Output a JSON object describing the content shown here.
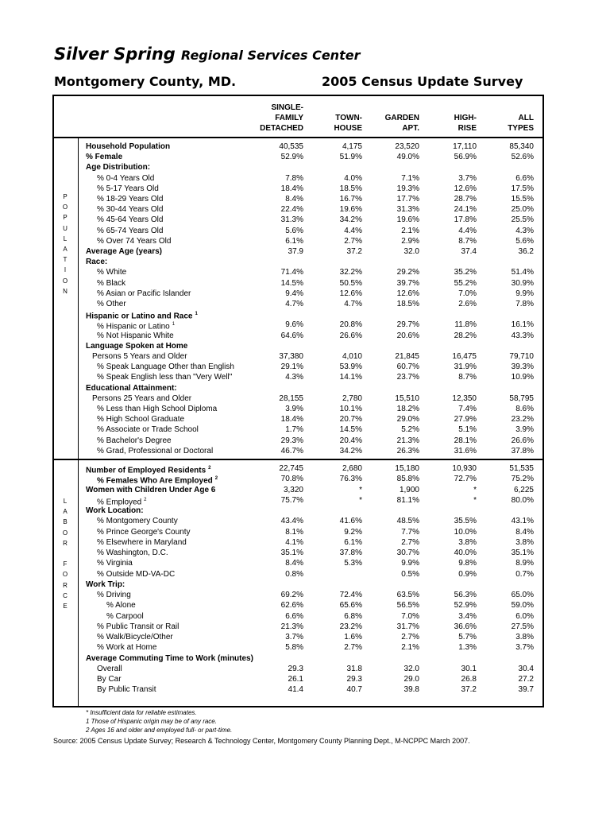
{
  "header": {
    "title_main": "Silver Spring",
    "title_sub": "Regional Services Center",
    "county": "Montgomery County, MD.",
    "survey": "2005 Census Update Survey"
  },
  "columns": [
    [
      "SINGLE-",
      "FAMILY",
      "DETACHED"
    ],
    [
      "TOWN-",
      "HOUSE"
    ],
    [
      "GARDEN",
      "APT."
    ],
    [
      "HIGH-",
      "RISE"
    ],
    [
      "ALL",
      "TYPES"
    ]
  ],
  "side_labels": {
    "population": [
      "P",
      "O",
      "P",
      "U",
      "L",
      "A",
      "T",
      "I",
      "O",
      "N"
    ],
    "labor_force": [
      "L",
      "A",
      "B",
      "O",
      "R",
      "",
      "F",
      "O",
      "R",
      "C",
      "E"
    ]
  },
  "population_rows": [
    {
      "label": "Household Population",
      "bold": true,
      "indent": 0,
      "values": [
        "40,535",
        "4,175",
        "23,520",
        "17,110",
        "85,340"
      ]
    },
    {
      "label": "% Female",
      "bold": true,
      "indent": 0,
      "values": [
        "52.9%",
        "51.9%",
        "49.0%",
        "56.9%",
        "52.6%"
      ]
    },
    {
      "label": "Age Distribution:",
      "bold": true,
      "indent": 0,
      "values": [
        "",
        "",
        "",
        "",
        ""
      ]
    },
    {
      "label": "% 0-4 Years Old",
      "bold": false,
      "indent": 1,
      "values": [
        "7.8%",
        "4.0%",
        "7.1%",
        "3.7%",
        "6.6%"
      ]
    },
    {
      "label": "% 5-17 Years Old",
      "bold": false,
      "indent": 1,
      "values": [
        "18.4%",
        "18.5%",
        "19.3%",
        "12.6%",
        "17.5%"
      ]
    },
    {
      "label": "% 18-29 Years Old",
      "bold": false,
      "indent": 1,
      "values": [
        "8.4%",
        "16.7%",
        "17.7%",
        "28.7%",
        "15.5%"
      ]
    },
    {
      "label": "% 30-44 Years Old",
      "bold": false,
      "indent": 1,
      "values": [
        "22.4%",
        "19.6%",
        "31.3%",
        "24.1%",
        "25.0%"
      ]
    },
    {
      "label": "% 45-64 Years Old",
      "bold": false,
      "indent": 1,
      "values": [
        "31.3%",
        "34.2%",
        "19.6%",
        "17.8%",
        "25.5%"
      ]
    },
    {
      "label": "% 65-74 Years Old",
      "bold": false,
      "indent": 1,
      "values": [
        "5.6%",
        "4.4%",
        "2.1%",
        "4.4%",
        "4.3%"
      ]
    },
    {
      "label": "% Over 74 Years Old",
      "bold": false,
      "indent": 1,
      "values": [
        "6.1%",
        "2.7%",
        "2.9%",
        "8.7%",
        "5.6%"
      ]
    },
    {
      "label": "Average Age (years)",
      "bold": true,
      "indent": 0,
      "values": [
        "37.9",
        "37.2",
        "32.0",
        "37.4",
        "36.2"
      ]
    },
    {
      "label": "Race:",
      "bold": true,
      "indent": 0,
      "values": [
        "",
        "",
        "",
        "",
        ""
      ]
    },
    {
      "label": "% White",
      "bold": false,
      "indent": 1,
      "values": [
        "71.4%",
        "32.2%",
        "29.2%",
        "35.2%",
        "51.4%"
      ]
    },
    {
      "label": "% Black",
      "bold": false,
      "indent": 1,
      "values": [
        "14.5%",
        "50.5%",
        "39.7%",
        "55.2%",
        "30.9%"
      ]
    },
    {
      "label": "% Asian or Pacific Islander",
      "bold": false,
      "indent": 1,
      "values": [
        "9.4%",
        "12.6%",
        "12.6%",
        "7.0%",
        "9.9%"
      ]
    },
    {
      "label": "% Other",
      "bold": false,
      "indent": 1,
      "values": [
        "4.7%",
        "4.7%",
        "18.5%",
        "2.6%",
        "7.8%"
      ]
    },
    {
      "label": "Hispanic or Latino and Race",
      "sup": "1",
      "bold": true,
      "indent": 0,
      "values": [
        "",
        "",
        "",
        "",
        ""
      ]
    },
    {
      "label": "% Hispanic or Latino",
      "sup": "1",
      "bold": false,
      "indent": 1,
      "values": [
        "9.6%",
        "20.8%",
        "29.7%",
        "11.8%",
        "16.1%"
      ]
    },
    {
      "label": "% Not Hispanic White",
      "bold": false,
      "indent": 1,
      "values": [
        "64.6%",
        "26.6%",
        "20.6%",
        "28.2%",
        "43.3%"
      ]
    },
    {
      "label": "Language Spoken at Home",
      "bold": true,
      "indent": 0,
      "values": [
        "",
        "",
        "",
        "",
        ""
      ]
    },
    {
      "label": "Persons 5 Years and Older",
      "bold": false,
      "indent": 2,
      "values": [
        "37,380",
        "4,010",
        "21,845",
        "16,475",
        "79,710"
      ]
    },
    {
      "label": "% Speak Language Other than English",
      "bold": false,
      "indent": 1,
      "values": [
        "29.1%",
        "53.9%",
        "60.7%",
        "31.9%",
        "39.3%"
      ]
    },
    {
      "label": "% Speak English less than \"Very Well\"",
      "bold": false,
      "indent": 1,
      "values": [
        "4.3%",
        "14.1%",
        "23.7%",
        "8.7%",
        "10.9%"
      ]
    },
    {
      "label": "Educational Attainment:",
      "bold": true,
      "indent": 0,
      "values": [
        "",
        "",
        "",
        "",
        ""
      ]
    },
    {
      "label": "Persons 25 Years and Older",
      "bold": false,
      "indent": 2,
      "values": [
        "28,155",
        "2,780",
        "15,510",
        "12,350",
        "58,795"
      ]
    },
    {
      "label": "% Less than High School Diploma",
      "bold": false,
      "indent": 1,
      "values": [
        "3.9%",
        "10.1%",
        "18.2%",
        "7.4%",
        "8.6%"
      ]
    },
    {
      "label": "% High School Graduate",
      "bold": false,
      "indent": 1,
      "values": [
        "18.4%",
        "20.7%",
        "29.0%",
        "27.9%",
        "23.2%"
      ]
    },
    {
      "label": "% Associate or Trade School",
      "bold": false,
      "indent": 1,
      "values": [
        "1.7%",
        "14.5%",
        "5.2%",
        "5.1%",
        "3.9%"
      ]
    },
    {
      "label": "% Bachelor's Degree",
      "bold": false,
      "indent": 1,
      "values": [
        "29.3%",
        "20.4%",
        "21.3%",
        "28.1%",
        "26.6%"
      ]
    },
    {
      "label": "% Grad, Professional or Doctoral",
      "bold": false,
      "indent": 1,
      "values": [
        "46.7%",
        "34.2%",
        "26.3%",
        "31.6%",
        "37.8%"
      ]
    }
  ],
  "labor_rows": [
    {
      "label": "Number of Employed Residents",
      "sup": "2",
      "bold": true,
      "indent": 0,
      "values": [
        "22,745",
        "2,680",
        "15,180",
        "10,930",
        "51,535"
      ]
    },
    {
      "label": "% Females Who Are Employed",
      "sup": "2",
      "bold": true,
      "indent": 1,
      "values": [
        "70.8%",
        "76.3%",
        "85.8%",
        "72.7%",
        "75.2%"
      ]
    },
    {
      "label": "Women with Children Under Age 6",
      "bold": true,
      "indent": 0,
      "values": [
        "3,320",
        "*",
        "1,900",
        "*",
        "6,225"
      ]
    },
    {
      "label": "% Employed",
      "sup": "2",
      "bold": false,
      "indent": 1,
      "values": [
        "75.7%",
        "*",
        "81.1%",
        "*",
        "80.0%"
      ]
    },
    {
      "label": "Work Location:",
      "bold": true,
      "indent": 0,
      "values": [
        "",
        "",
        "",
        "",
        ""
      ]
    },
    {
      "label": "% Montgomery County",
      "bold": false,
      "indent": 1,
      "values": [
        "43.4%",
        "41.6%",
        "48.5%",
        "35.5%",
        "43.1%"
      ]
    },
    {
      "label": "% Prince George's County",
      "bold": false,
      "indent": 1,
      "values": [
        "8.1%",
        "9.2%",
        "7.7%",
        "10.0%",
        "8.4%"
      ]
    },
    {
      "label": "% Elsewhere in Maryland",
      "bold": false,
      "indent": 1,
      "values": [
        "4.1%",
        "6.1%",
        "2.7%",
        "3.8%",
        "3.8%"
      ]
    },
    {
      "label": "% Washington, D.C.",
      "bold": false,
      "indent": 1,
      "values": [
        "35.1%",
        "37.8%",
        "30.7%",
        "40.0%",
        "35.1%"
      ]
    },
    {
      "label": "% Virginia",
      "bold": false,
      "indent": 1,
      "values": [
        "8.4%",
        "5.3%",
        "9.9%",
        "9.8%",
        "8.9%"
      ]
    },
    {
      "label": "% Outside MD-VA-DC",
      "bold": false,
      "indent": 1,
      "values": [
        "0.8%",
        "",
        "0.5%",
        "0.9%",
        "0.7%"
      ]
    },
    {
      "label": "Work Trip:",
      "bold": true,
      "indent": 0,
      "values": [
        "",
        "",
        "",
        "",
        ""
      ]
    },
    {
      "label": "% Driving",
      "bold": false,
      "indent": 1,
      "values": [
        "69.2%",
        "72.4%",
        "63.5%",
        "56.3%",
        "65.0%"
      ]
    },
    {
      "label": "% Alone",
      "bold": false,
      "indent": 3,
      "values": [
        "62.6%",
        "65.6%",
        "56.5%",
        "52.9%",
        "59.0%"
      ]
    },
    {
      "label": "% Carpool",
      "bold": false,
      "indent": 3,
      "values": [
        "6.6%",
        "6.8%",
        "7.0%",
        "3.4%",
        "6.0%"
      ]
    },
    {
      "label": "% Public Transit or Rail",
      "bold": false,
      "indent": 1,
      "values": [
        "21.3%",
        "23.2%",
        "31.7%",
        "36.6%",
        "27.5%"
      ]
    },
    {
      "label": "% Walk/Bicycle/Other",
      "bold": false,
      "indent": 1,
      "values": [
        "3.7%",
        "1.6%",
        "2.7%",
        "5.7%",
        "3.8%"
      ]
    },
    {
      "label": "% Work at Home",
      "bold": false,
      "indent": 1,
      "values": [
        "5.8%",
        "2.7%",
        "2.1%",
        "1.3%",
        "3.7%"
      ]
    },
    {
      "label": "Average Commuting Time to Work (minutes)",
      "bold": true,
      "indent": 0,
      "values": [
        "",
        "",
        "",
        "",
        ""
      ]
    },
    {
      "label": "Overall",
      "bold": false,
      "indent": 1,
      "values": [
        "29.3",
        "31.8",
        "32.0",
        "30.1",
        "30.4"
      ]
    },
    {
      "label": "By Car",
      "bold": false,
      "indent": 1,
      "values": [
        "26.1",
        "29.3",
        "29.0",
        "26.8",
        "27.2"
      ]
    },
    {
      "label": "By Public Transit",
      "bold": false,
      "indent": 1,
      "values": [
        "41.4",
        "40.7",
        "39.8",
        "37.2",
        "39.7"
      ]
    }
  ],
  "footnotes": [
    "* Insufficient data for reliable estimates.",
    "1  Those of Hispanic origin may be of any race.",
    "2  Ages 16 and older and employed full- or part-time."
  ],
  "source": "Source:  2005 Census Update Survey; Research & Technology Center,  Montgomery County Planning Dept., M-NCPPC March 2007."
}
